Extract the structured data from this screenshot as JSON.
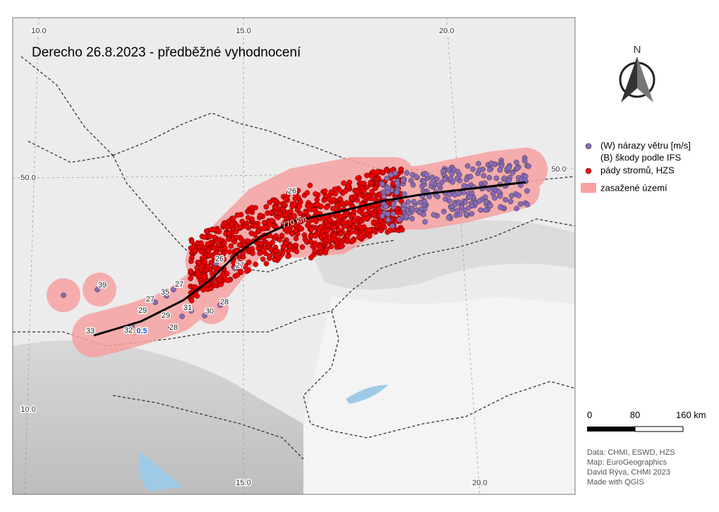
{
  "title": "Derecho 26.8.2023 - předběžné vyhodnocení",
  "north": "N",
  "legend": {
    "items": [
      {
        "lines": [
          "(W) nárazy větru [m/s]",
          "(B) škody podle IFS"
        ]
      },
      {
        "lines": [
          "pády stromů, HZS"
        ]
      },
      {
        "lines": [
          "zasažené území"
        ]
      }
    ]
  },
  "scale": {
    "labels": [
      "0",
      "80",
      "160 km"
    ]
  },
  "credits": [
    "Data: CHMI, ESWD, HZS",
    "Map: EuroGeographics",
    "David Rýva, CHMI 2023",
    "Made with QGIS"
  ],
  "graticule": {
    "top": [
      "10.0",
      "15.0",
      "20.0"
    ],
    "bottom": [
      "15.0",
      "20.0"
    ],
    "left": [
      "50.0",
      "10.0"
    ],
    "right": [
      "50.0"
    ]
  },
  "track_length": "770 km",
  "annotations": [
    "33",
    "32",
    "0.5",
    "28",
    "29",
    "29",
    "31",
    "30",
    "28",
    "27",
    "35",
    "27",
    "39",
    "26",
    "27",
    "26"
  ]
}
